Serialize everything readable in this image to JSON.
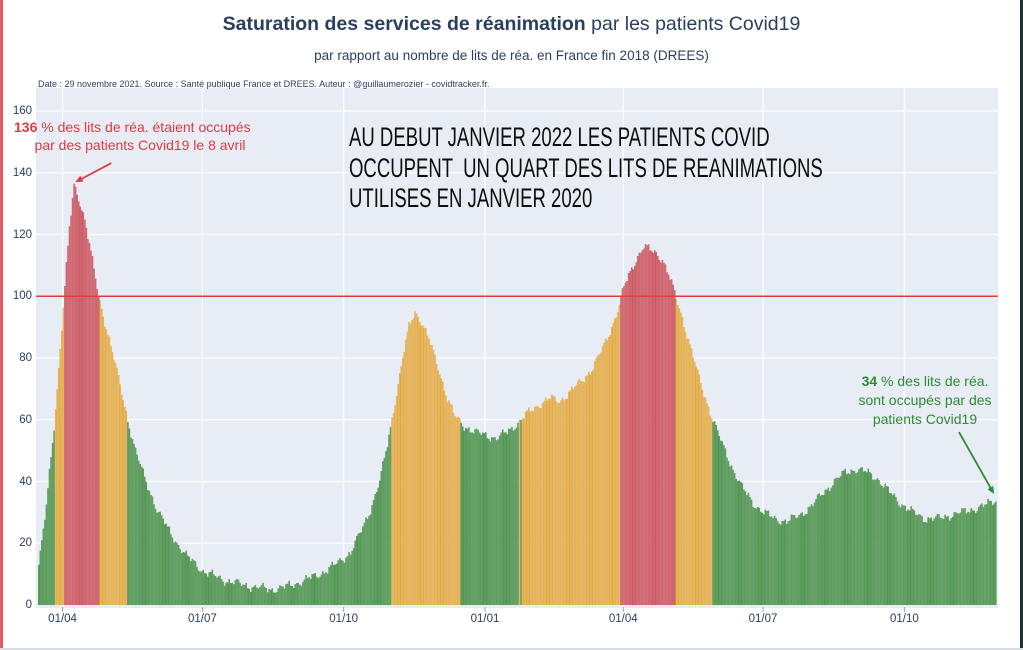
{
  "header": {
    "title_bold": "Saturation des services de réanimation",
    "title_rest": " par les patients Covid19",
    "subtitle": "par rapport au nombre de lits de réa. en France fin 2018 (DREES)",
    "source_line": "Date : 29 novembre 2021. Source : Santé publique France et DREES. Auteur : @guillaumerozier - covidtracker.fr."
  },
  "overlay_note": {
    "line1": "AU DEBUT JANVIER 2022 LES PATIENTS COVID",
    "line2": "OCCUPENT  UN QUART DES LITS DE REANIMATIONS",
    "line3": "UTILISES EN JANVIER 2020"
  },
  "annotations": {
    "peak_red": {
      "value_bold": "136",
      "line1_rest": " % des lits de réa. étaient occupés",
      "line2": "par des patients Covid19 le 8 avril"
    },
    "current_green": {
      "value_bold": "34",
      "line1_rest": " % des lits de réa.",
      "line2": "sont occupés par des",
      "line3": "patients Covid19"
    }
  },
  "chart_data": {
    "type": "bar",
    "title": "Saturation des services de réanimation par les patients Covid19",
    "subtitle": "par rapport au nombre de lits de réa. en France fin 2018 (DREES)",
    "xlabel": "",
    "ylabel": "",
    "ylim": [
      0,
      167
    ],
    "grid": true,
    "legend": false,
    "reference_line_value": 100,
    "thresholds": {
      "red_min": 100,
      "yellow_min": 60
    },
    "date_range": [
      "2020-03-16",
      "2021-11-29"
    ],
    "y_ticks": [
      0,
      20,
      40,
      60,
      80,
      100,
      120,
      140,
      160
    ],
    "x_ticks": [
      {
        "date": "2020-04-01",
        "label": "01/04"
      },
      {
        "date": "2020-07-01",
        "label": "01/07"
      },
      {
        "date": "2020-10-01",
        "label": "01/10"
      },
      {
        "date": "2021-01-01",
        "label": "01/01"
      },
      {
        "date": "2021-04-01",
        "label": "01/04"
      },
      {
        "date": "2021-07-01",
        "label": "01/07"
      },
      {
        "date": "2021-10-01",
        "label": "01/10"
      }
    ],
    "colors": {
      "green": "#65a763",
      "green_dark": "#4c8b4f",
      "yellow": "#efbd62",
      "yellow_dark": "#d9a344",
      "red": "#d96d75",
      "red_dark": "#c25560",
      "reference": "#e23c3c",
      "plot_bg": "#e8edf5",
      "grid": "#ffffff",
      "tick": "#2a3f5f",
      "annotation_red": "#e0393f",
      "annotation_green": "#2e8b31"
    },
    "interpolation": "linear-daily",
    "anchors": [
      [
        "2020-03-16",
        13
      ],
      [
        "2020-03-18",
        20
      ],
      [
        "2020-03-21",
        32
      ],
      [
        "2020-03-24",
        48
      ],
      [
        "2020-03-26",
        58
      ],
      [
        "2020-03-28",
        70
      ],
      [
        "2020-03-31",
        90
      ],
      [
        "2020-04-02",
        103
      ],
      [
        "2020-04-05",
        122
      ],
      [
        "2020-04-08",
        136
      ],
      [
        "2020-04-11",
        132
      ],
      [
        "2020-04-15",
        125
      ],
      [
        "2020-04-19",
        114
      ],
      [
        "2020-04-24",
        100
      ],
      [
        "2020-04-28",
        92
      ],
      [
        "2020-05-03",
        82
      ],
      [
        "2020-05-08",
        71
      ],
      [
        "2020-05-13",
        60
      ],
      [
        "2020-05-18",
        50
      ],
      [
        "2020-05-24",
        41
      ],
      [
        "2020-06-01",
        31
      ],
      [
        "2020-06-10",
        23
      ],
      [
        "2020-06-20",
        16
      ],
      [
        "2020-07-01",
        11
      ],
      [
        "2020-07-15",
        8
      ],
      [
        "2020-08-01",
        6
      ],
      [
        "2020-08-15",
        5
      ],
      [
        "2020-08-25",
        6
      ],
      [
        "2020-09-05",
        8
      ],
      [
        "2020-09-15",
        10
      ],
      [
        "2020-09-25",
        13
      ],
      [
        "2020-10-05",
        17
      ],
      [
        "2020-10-12",
        24
      ],
      [
        "2020-10-18",
        31
      ],
      [
        "2020-10-24",
        40
      ],
      [
        "2020-10-29",
        52
      ],
      [
        "2020-11-03",
        66
      ],
      [
        "2020-11-08",
        80
      ],
      [
        "2020-11-12",
        90
      ],
      [
        "2020-11-16",
        95
      ],
      [
        "2020-11-20",
        92
      ],
      [
        "2020-11-25",
        86
      ],
      [
        "2020-12-01",
        77
      ],
      [
        "2020-12-07",
        67
      ],
      [
        "2020-12-12",
        61
      ],
      [
        "2020-12-18",
        58
      ],
      [
        "2020-12-25",
        56
      ],
      [
        "2021-01-01",
        55
      ],
      [
        "2021-01-08",
        54
      ],
      [
        "2021-01-15",
        56
      ],
      [
        "2021-01-22",
        59
      ],
      [
        "2021-01-28",
        62
      ],
      [
        "2021-02-05",
        65
      ],
      [
        "2021-02-12",
        67
      ],
      [
        "2021-02-18",
        66
      ],
      [
        "2021-02-25",
        69
      ],
      [
        "2021-03-05",
        73
      ],
      [
        "2021-03-12",
        77
      ],
      [
        "2021-03-18",
        83
      ],
      [
        "2021-03-24",
        90
      ],
      [
        "2021-03-29",
        97
      ],
      [
        "2021-04-01",
        103
      ],
      [
        "2021-04-06",
        109
      ],
      [
        "2021-04-10",
        113
      ],
      [
        "2021-04-14",
        116
      ],
      [
        "2021-04-18",
        115
      ],
      [
        "2021-04-22",
        114
      ],
      [
        "2021-04-26",
        112
      ],
      [
        "2021-04-30",
        107
      ],
      [
        "2021-05-04",
        101
      ],
      [
        "2021-05-09",
        93
      ],
      [
        "2021-05-14",
        84
      ],
      [
        "2021-05-19",
        75
      ],
      [
        "2021-05-24",
        67
      ],
      [
        "2021-05-29",
        60
      ],
      [
        "2021-06-04",
        52
      ],
      [
        "2021-06-10",
        45
      ],
      [
        "2021-06-17",
        38
      ],
      [
        "2021-06-24",
        33
      ],
      [
        "2021-07-01",
        30
      ],
      [
        "2021-07-08",
        28
      ],
      [
        "2021-07-16",
        27
      ],
      [
        "2021-07-24",
        29
      ],
      [
        "2021-08-01",
        32
      ],
      [
        "2021-08-08",
        36
      ],
      [
        "2021-08-16",
        40
      ],
      [
        "2021-08-23",
        43
      ],
      [
        "2021-08-30",
        44
      ],
      [
        "2021-09-06",
        43
      ],
      [
        "2021-09-13",
        41
      ],
      [
        "2021-09-20",
        37
      ],
      [
        "2021-09-28",
        33
      ],
      [
        "2021-10-06",
        30
      ],
      [
        "2021-10-14",
        28
      ],
      [
        "2021-10-22",
        28
      ],
      [
        "2021-10-30",
        29
      ],
      [
        "2021-11-07",
        30
      ],
      [
        "2021-11-14",
        31
      ],
      [
        "2021-11-21",
        32
      ],
      [
        "2021-11-29",
        34
      ]
    ]
  }
}
